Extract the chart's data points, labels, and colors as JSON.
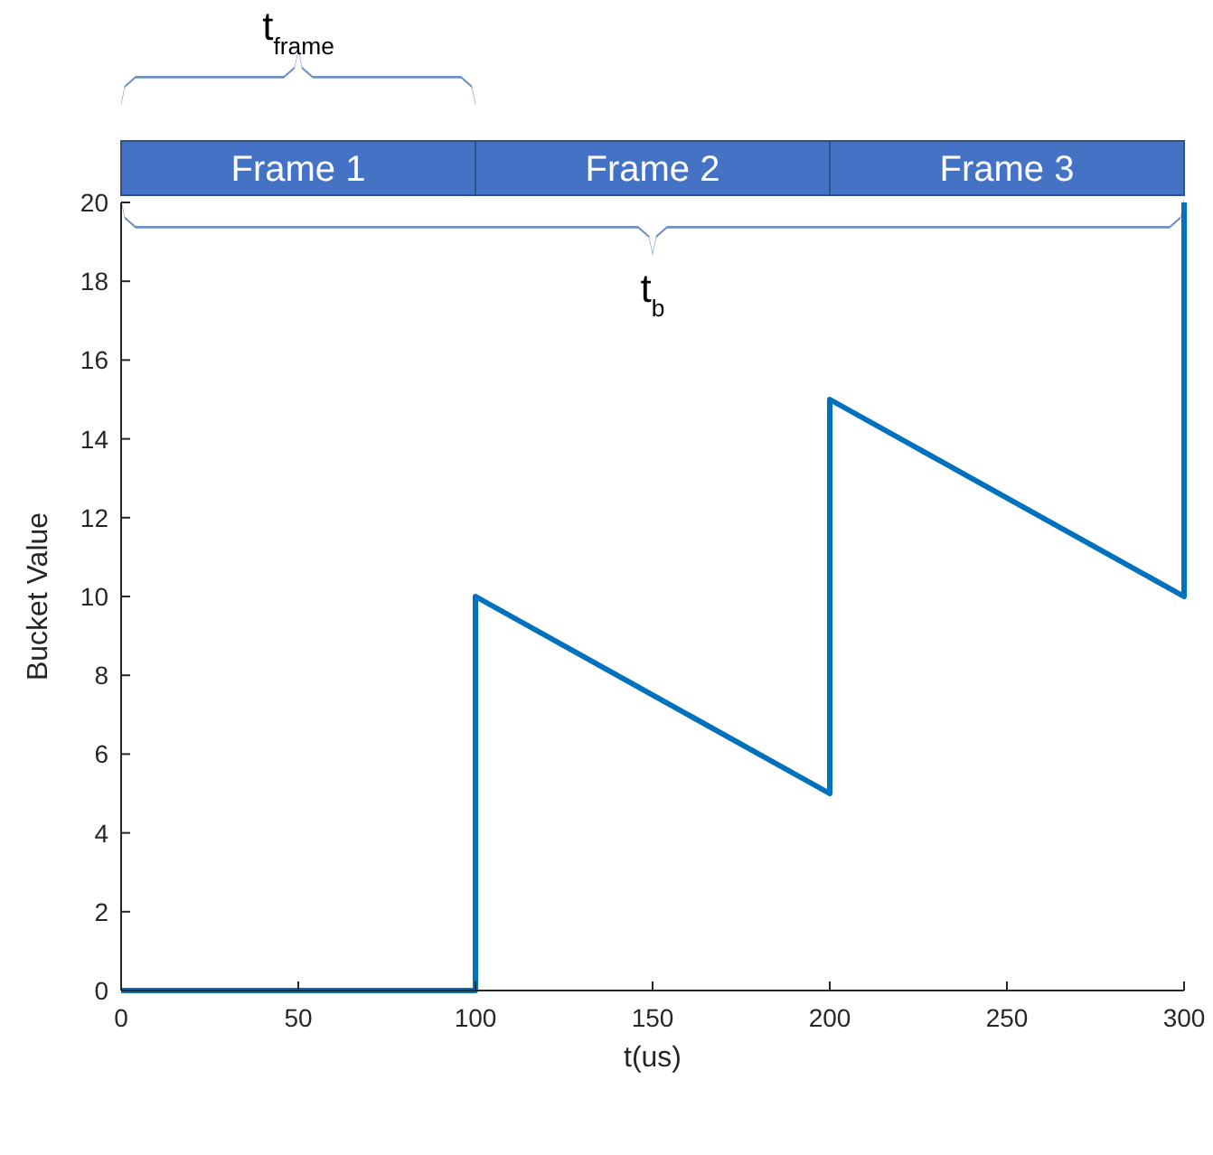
{
  "chart_data": {
    "type": "line",
    "xlabel": "t(us)",
    "ylabel": "Bucket Value",
    "series": [
      {
        "color": "#0072bd",
        "x": [
          0,
          100,
          100,
          200,
          200,
          300,
          300
        ],
        "values": [
          0,
          0,
          10,
          5,
          15,
          10,
          20
        ]
      }
    ],
    "xlim": [
      0,
      300
    ],
    "xticks": [
      0,
      50,
      100,
      150,
      200,
      250,
      300
    ],
    "ylim": [
      0,
      20
    ],
    "yticks": [
      0,
      2,
      4,
      6,
      8,
      10,
      12,
      14,
      16,
      18,
      20
    ],
    "grid": false,
    "marker": "none",
    "line_style": "solid",
    "annotations": [
      "t$_{frame}$",
      "t$_{b}$",
      "Frame 1",
      "Frame 2",
      "Frame 3"
    ]
  }
}
